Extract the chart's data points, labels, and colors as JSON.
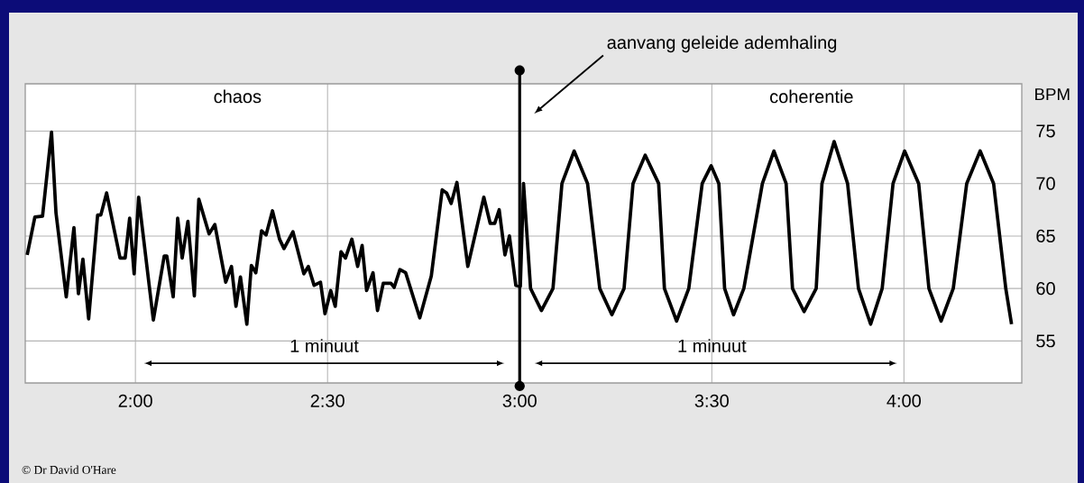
{
  "chart_data": {
    "type": "line",
    "ylabel": "BPM",
    "color": "#000000",
    "grid": true,
    "x": [
      103.1,
      104.3,
      105.5,
      106.9,
      107.6,
      109.2,
      110.4,
      111.1,
      111.8,
      112.7,
      114.1,
      114.6,
      115.5,
      117.6,
      118.4,
      119.1,
      119.8,
      120.5,
      122.8,
      124.5,
      124.9,
      125.9,
      126.6,
      127.3,
      128.2,
      129.2,
      129.9,
      131.5,
      132.4,
      134.1,
      135.0,
      135.7,
      136.4,
      137.4,
      138.1,
      138.8,
      139.7,
      140.4,
      141.4,
      142.5,
      143.2,
      144.6,
      146.3,
      147.0,
      147.9,
      148.9,
      149.6,
      150.5,
      151.2,
      152.1,
      152.8,
      153.8,
      154.7,
      155.4,
      156.1,
      157.1,
      157.8,
      158.7,
      159.9,
      160.4,
      161.3,
      162.2,
      164.4,
      166.2,
      167.9,
      168.6,
      169.3,
      170.2,
      171.9,
      174.4,
      175.4,
      176.1,
      176.8,
      177.7,
      178.4,
      179.4,
      180.1,
      180.6,
      181.7,
      183.4,
      185.2,
      186.6,
      188.5,
      190.6,
      192.5,
      194.4,
      196.3,
      197.7,
      199.6,
      201.7,
      202.6,
      204.5,
      206.4,
      208.5,
      209.9,
      211.1,
      212.0,
      213.4,
      215.0,
      217.9,
      219.7,
      221.6,
      222.6,
      224.4,
      226.3,
      227.2,
      229.1,
      231.2,
      232.9,
      234.8,
      236.6,
      238.3,
      240.1,
      242.3,
      243.9,
      245.8,
      247.7,
      249.8,
      251.9,
      254.0,
      255.9,
      256.8
    ],
    "values": [
      63.2,
      66.8,
      66.9,
      74.9,
      67.2,
      59.2,
      65.8,
      59.5,
      62.8,
      57.1,
      67.0,
      67.0,
      69.1,
      62.9,
      62.9,
      66.7,
      61.4,
      68.7,
      57.0,
      63.1,
      63.1,
      59.2,
      66.7,
      62.9,
      66.4,
      59.3,
      68.5,
      65.2,
      66.1,
      60.6,
      62.1,
      58.3,
      61.1,
      56.6,
      62.2,
      61.5,
      65.5,
      65.1,
      67.4,
      64.7,
      63.8,
      65.4,
      61.4,
      62.1,
      60.3,
      60.6,
      57.6,
      59.8,
      58.3,
      63.5,
      62.9,
      64.7,
      62.1,
      64.1,
      59.8,
      61.5,
      57.9,
      60.5,
      60.5,
      60.1,
      61.8,
      61.5,
      57.2,
      61.2,
      69.4,
      69.1,
      68.1,
      70.1,
      62.1,
      68.7,
      66.2,
      66.2,
      67.5,
      63.2,
      65.0,
      60.3,
      60.2,
      70.0,
      60,
      57.9,
      60,
      70,
      73.1,
      70,
      60,
      57.5,
      60,
      70,
      72.7,
      70,
      60,
      56.9,
      60,
      70,
      71.7,
      70,
      60,
      57.5,
      60,
      70,
      73.1,
      70,
      60,
      57.8,
      60,
      70,
      74.0,
      70,
      60,
      56.6,
      60,
      70,
      73.1,
      70,
      60,
      56.9,
      60,
      70,
      73.1,
      70,
      60,
      56.6
    ],
    "xlim": [
      102.8,
      258.4
    ],
    "ylim": [
      51,
      79.5
    ],
    "xticks": [
      {
        "value": 120,
        "label": "2:00"
      },
      {
        "value": 150,
        "label": "2:30"
      },
      {
        "value": 180,
        "label": "3:00"
      },
      {
        "value": 210,
        "label": "3:30"
      },
      {
        "value": 240,
        "label": "4:00"
      }
    ],
    "yticks": [
      55,
      60,
      65,
      70,
      75
    ],
    "ref_lines": [
      {
        "axis": "x",
        "value": 180,
        "label": "aanvang geleide ademhaling"
      }
    ],
    "annotations": [
      "chaos",
      "coherentie",
      "1 minuut",
      "1 minuut",
      "© Dr David O'Hare"
    ]
  }
}
